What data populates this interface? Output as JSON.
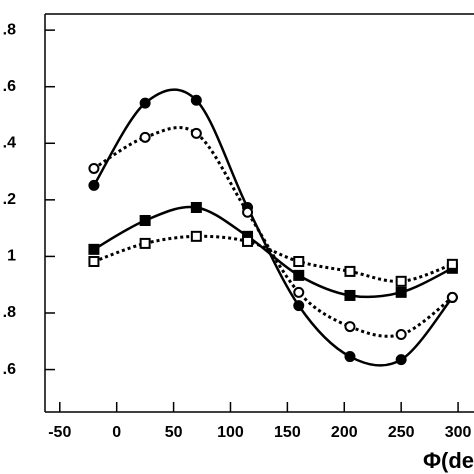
{
  "chart_data": {
    "type": "line",
    "x_label": "Φ(de",
    "x": [
      -20,
      25,
      70,
      115,
      160,
      205,
      250,
      295
    ],
    "xlim": [
      -63,
      314
    ],
    "xticks": [
      -50,
      0,
      50,
      100,
      150,
      200,
      250,
      300
    ],
    "ylim": [
      0.45,
      1.857
    ],
    "yticks": [
      {
        "value": 0.6,
        "label": ".6"
      },
      {
        "value": 0.8,
        "label": ".8"
      },
      1,
      {
        "value": 1.2,
        "label": ".2"
      },
      {
        "value": 1.4,
        "label": ".4"
      },
      {
        "value": 1.6,
        "label": ".6"
      },
      {
        "value": 1.8,
        "label": ".8"
      }
    ],
    "series": [
      {
        "color": "#000000",
        "marker": "circle",
        "filled": true,
        "dashed": false,
        "values": [
          1.251,
          1.542,
          1.552,
          1.173,
          0.826,
          0.646,
          0.635,
          0.855
        ]
      },
      {
        "color": "#000000",
        "marker": "circle",
        "filled": false,
        "dashed": true,
        "values": [
          1.311,
          1.421,
          1.435,
          1.156,
          0.873,
          0.752,
          0.724,
          0.855
        ]
      },
      {
        "color": "#000000",
        "marker": "square",
        "filled": true,
        "dashed": false,
        "values": [
          1.025,
          1.127,
          1.173,
          1.071,
          0.933,
          0.862,
          0.873,
          0.958
        ]
      },
      {
        "color": "#000000",
        "marker": "square",
        "filled": false,
        "dashed": true,
        "values": [
          0.982,
          1.046,
          1.071,
          1.053,
          0.982,
          0.947,
          0.912,
          0.972
        ]
      }
    ]
  }
}
